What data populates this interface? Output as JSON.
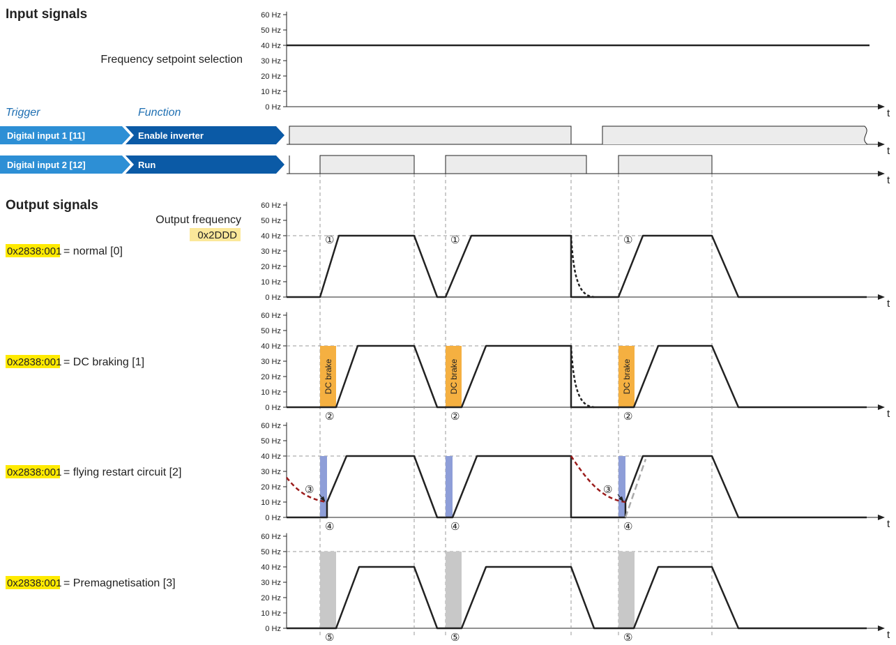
{
  "headers": {
    "input": "Input signals",
    "output": "Output signals"
  },
  "labels": {
    "freq_setpoint": "Frequency setpoint selection",
    "trigger": "Trigger",
    "function": "Function",
    "output_frequency": "Output frequency",
    "output_frequency_code": "0x2DDD"
  },
  "axis": {
    "time_label": "t",
    "unit": "Hz",
    "ticks_60": [
      "0 Hz",
      "10 Hz",
      "20 Hz",
      "30 Hz",
      "40 Hz",
      "50 Hz",
      "60 Hz"
    ]
  },
  "triggers": [
    {
      "trigger": "Digital input 1 [11]",
      "function": "Enable inverter"
    },
    {
      "trigger": "Digital input 2 [12]",
      "function": "Run"
    }
  ],
  "panels": [
    {
      "code": "0x2838:001",
      "text": "= normal [0]",
      "marker": "①"
    },
    {
      "code": "0x2838:001",
      "text": "= DC braking [1]",
      "marker": "②",
      "box_label": "DC brake"
    },
    {
      "code": "0x2838:001",
      "text": "= flying restart circuit [2]",
      "marker": "④",
      "marker2": "③"
    },
    {
      "code": "0x2838:001",
      "text": "= Premagnetisation [3]",
      "marker": "⑤"
    }
  ],
  "setpoint_hz": 40,
  "premag_level_hz": 50,
  "colors": {
    "arrow_dark": "#0b5aa6",
    "arrow_light": "#2d8fd5",
    "highlight": "#ffea00",
    "code_box": "#fbe89a",
    "dc_brake": "#f5b041",
    "flying": "#8e9ed8",
    "premag": "#c8c8c8",
    "decay": "#9b1c1c",
    "signal_fill": "#ececec"
  }
}
